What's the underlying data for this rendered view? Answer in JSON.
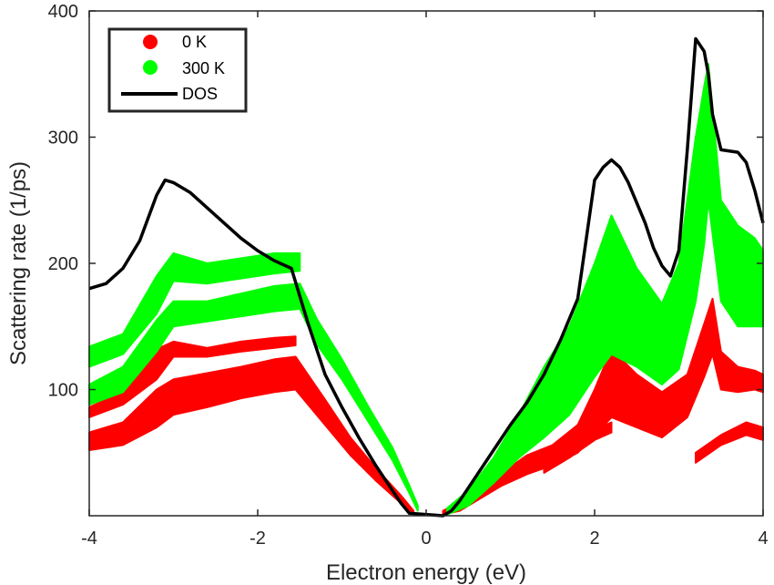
{
  "chart_data": {
    "type": "scatter",
    "title": "",
    "xlabel": "Electron energy (eV)",
    "ylabel": "Scattering rate (1/ps)",
    "xlim": [
      -4,
      4
    ],
    "ylim": [
      0,
      400
    ],
    "xticks": [
      -4,
      -2,
      0,
      2,
      4
    ],
    "xtick_labels": [
      "-4",
      "-2",
      "0",
      "2",
      "4"
    ],
    "yticks": [
      100,
      200,
      300,
      400
    ],
    "ytick_labels": [
      "100",
      "200",
      "300",
      "400"
    ],
    "legend_position": "top-left",
    "colors": {
      "k0": "#ff0000",
      "k300": "#00ff00",
      "dos": "#000000"
    },
    "series": [
      {
        "name": "0 K",
        "kind": "scatter-band",
        "color": "#ff0000",
        "bands": [
          {
            "x": [
              -4.0,
              -3.6,
              -3.2,
              -3.0,
              -2.6,
              -2.2,
              -1.8,
              -1.55,
              -1.2,
              -0.9,
              -0.6,
              -0.3,
              -0.15
            ],
            "lower": [
              52,
              56,
              70,
              80,
              86,
              93,
              98,
              100,
              72,
              48,
              28,
              10,
              2
            ],
            "upper": [
              66,
              74,
              100,
              108,
              113,
              118,
              124,
              126,
              92,
              62,
              38,
              16,
              4
            ]
          },
          {
            "x": [
              -4.0,
              -3.6,
              -3.2,
              -3.0,
              -2.6,
              -2.2,
              -1.8,
              -1.55
            ],
            "lower": [
              78,
              88,
              108,
              126,
              126,
              130,
              133,
              135
            ],
            "upper": [
              86,
              98,
              132,
              138,
              133,
              138,
              141,
              142
            ]
          },
          {
            "x": [
              0.2,
              0.4,
              0.6,
              0.9,
              1.2,
              1.5,
              1.8,
              2.0,
              2.2,
              2.5,
              2.8,
              3.1,
              3.3,
              3.4,
              3.5,
              3.7,
              3.9,
              4.0
            ],
            "lower": [
              1,
              4,
              12,
              24,
              33,
              40,
              50,
              64,
              78,
              70,
              62,
              78,
              110,
              128,
              100,
              98,
              100,
              98
            ],
            "upper": [
              4,
              10,
              20,
              34,
              48,
              56,
              72,
              100,
              132,
              112,
              98,
              112,
              152,
              172,
              130,
              118,
              115,
              112
            ]
          },
          {
            "x": [
              1.4,
              1.7,
              2.0,
              2.2
            ],
            "lower": [
              34,
              46,
              60,
              66
            ],
            "upper": [
              40,
              54,
              68,
              74
            ]
          },
          {
            "x": [
              3.2,
              3.5,
              3.8,
              4.0
            ],
            "lower": [
              42,
              56,
              64,
              60
            ],
            "upper": [
              50,
              64,
              74,
              70
            ]
          }
        ]
      },
      {
        "name": "300 K",
        "kind": "scatter-band",
        "color": "#00ff00",
        "bands": [
          {
            "x": [
              -4.0,
              -3.6,
              -3.2,
              -3.0,
              -2.6,
              -2.2,
              -1.8,
              -1.5,
              -1.3,
              -1.0,
              -0.7,
              -0.4,
              -0.2,
              -0.1
            ],
            "lower": [
              88,
              98,
              130,
              150,
              154,
              158,
              162,
              164,
              136,
              108,
              76,
              44,
              18,
              4
            ],
            "upper": [
              104,
              118,
              155,
              170,
              170,
              176,
              182,
              184,
              156,
              124,
              88,
              54,
              24,
              8
            ]
          },
          {
            "x": [
              -4.0,
              -3.6,
              -3.2,
              -3.0,
              -2.6,
              -2.2,
              -1.8,
              -1.5
            ],
            "lower": [
              118,
              128,
              160,
              186,
              184,
              188,
              192,
              194
            ],
            "upper": [
              134,
              144,
              190,
              208,
              200,
              204,
              208,
              208
            ]
          },
          {
            "x": [
              0.25,
              0.5,
              0.8,
              1.1,
              1.4,
              1.7,
              2.0,
              2.2,
              2.5,
              2.8,
              3.0,
              3.2,
              3.3,
              3.35,
              3.5,
              3.7,
              3.9,
              4.0
            ],
            "lower": [
              1,
              8,
              26,
              46,
              62,
              80,
              110,
              128,
              118,
              104,
              116,
              170,
              215,
              250,
              170,
              150,
              150,
              150
            ],
            "upper": [
              6,
              20,
              46,
              80,
              118,
              150,
              200,
              238,
              196,
              168,
              200,
              300,
              340,
              358,
              250,
              230,
              220,
              210
            ]
          }
        ]
      },
      {
        "name": "DOS",
        "kind": "line",
        "color": "#000000",
        "x": [
          -4.0,
          -3.8,
          -3.6,
          -3.4,
          -3.2,
          -3.1,
          -3.0,
          -2.8,
          -2.6,
          -2.4,
          -2.2,
          -2.0,
          -1.8,
          -1.6,
          -1.4,
          -1.2,
          -1.0,
          -0.8,
          -0.6,
          -0.4,
          -0.3,
          -0.2,
          0.2,
          0.3,
          0.4,
          0.6,
          0.8,
          1.0,
          1.2,
          1.4,
          1.6,
          1.8,
          2.0,
          2.1,
          2.2,
          2.3,
          2.4,
          2.6,
          2.7,
          2.8,
          2.9,
          3.0,
          3.1,
          3.2,
          3.3,
          3.35,
          3.4,
          3.5,
          3.7,
          3.8,
          3.9,
          4.0
        ],
        "y": [
          180,
          184,
          196,
          218,
          254,
          266,
          264,
          256,
          244,
          232,
          220,
          210,
          202,
          196,
          152,
          112,
          86,
          62,
          40,
          20,
          10,
          2,
          0,
          4,
          12,
          32,
          52,
          72,
          90,
          112,
          140,
          172,
          266,
          276,
          282,
          276,
          264,
          232,
          212,
          198,
          190,
          210,
          290,
          378,
          368,
          350,
          318,
          290,
          288,
          280,
          258,
          232
        ]
      }
    ]
  }
}
